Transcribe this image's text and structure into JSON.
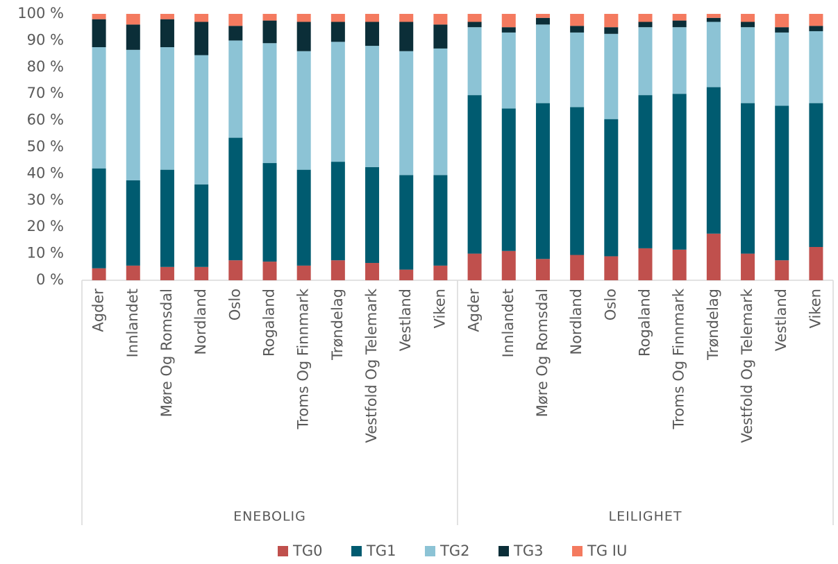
{
  "chart_data": {
    "type": "stacked_bar",
    "groups": [
      {
        "name": "ENEBOLIG",
        "categories": [
          "Agder",
          "Innlandet",
          "Møre Og Romsdal",
          "Nordland",
          "Oslo",
          "Rogaland",
          "Troms Og Finnmark",
          "Trøndelag",
          "Vestfold Og Telemark",
          "Vestland",
          "Viken"
        ]
      },
      {
        "name": "LEILIGHET",
        "categories": [
          "Agder",
          "Innlandet",
          "Møre Og Romsdal",
          "Nordland",
          "Oslo",
          "Rogaland",
          "Troms Og Finnmark",
          "Trøndelag",
          "Vestfold Og Telemark",
          "Vestland",
          "Viken"
        ]
      }
    ],
    "series": [
      {
        "name": "TG0",
        "color": "#c0504d",
        "values": [
          4.5,
          5.5,
          5,
          5,
          7.5,
          7,
          5.5,
          7.5,
          6.5,
          4,
          5.5,
          10,
          11,
          8,
          9.5,
          9,
          12,
          11.5,
          17.5,
          10,
          7.5,
          12.5
        ]
      },
      {
        "name": "TG1",
        "color": "#005b70",
        "values": [
          37.5,
          32,
          36.5,
          31,
          46,
          37,
          36,
          37,
          36,
          35.5,
          34,
          59.5,
          53.5,
          58.5,
          55.5,
          51.5,
          57.5,
          58.5,
          55,
          56.5,
          58,
          54
        ]
      },
      {
        "name": "TG2",
        "color": "#8cc3d5",
        "values": [
          45.5,
          49,
          46,
          48.5,
          36.5,
          45,
          44.5,
          45,
          45.5,
          46.5,
          47.5,
          25.5,
          28.5,
          29.5,
          28,
          32,
          25.5,
          25,
          24.5,
          28.5,
          27.5,
          27
        ]
      },
      {
        "name": "TG3",
        "color": "#0b2e38",
        "values": [
          10.5,
          9.5,
          10.5,
          12.5,
          5.5,
          8.5,
          11,
          7.5,
          9,
          11,
          9,
          2,
          2,
          2.5,
          2.5,
          2.5,
          2,
          2.5,
          1.5,
          2,
          2,
          2
        ]
      },
      {
        "name": "TG IU",
        "color": "#f47a5f",
        "values": [
          2,
          4,
          2,
          3,
          4.5,
          2.5,
          3,
          3,
          3,
          3,
          4,
          3,
          5,
          1.5,
          4.5,
          5,
          3,
          2.5,
          1.5,
          3,
          5,
          4.5
        ]
      }
    ],
    "ylim": [
      0,
      100
    ],
    "yticks": [
      {
        "value": 0,
        "label": "0 %"
      },
      {
        "value": 10,
        "label": "10 %"
      },
      {
        "value": 20,
        "label": "20 %"
      },
      {
        "value": 30,
        "label": "30 %"
      },
      {
        "value": 40,
        "label": "40 %"
      },
      {
        "value": 50,
        "label": "50 %"
      },
      {
        "value": 60,
        "label": "60 %"
      },
      {
        "value": 70,
        "label": "70 %"
      },
      {
        "value": 80,
        "label": "80 %"
      },
      {
        "value": 90,
        "label": "90 %"
      },
      {
        "value": 100,
        "label": "100 %"
      }
    ],
    "grid": false
  }
}
